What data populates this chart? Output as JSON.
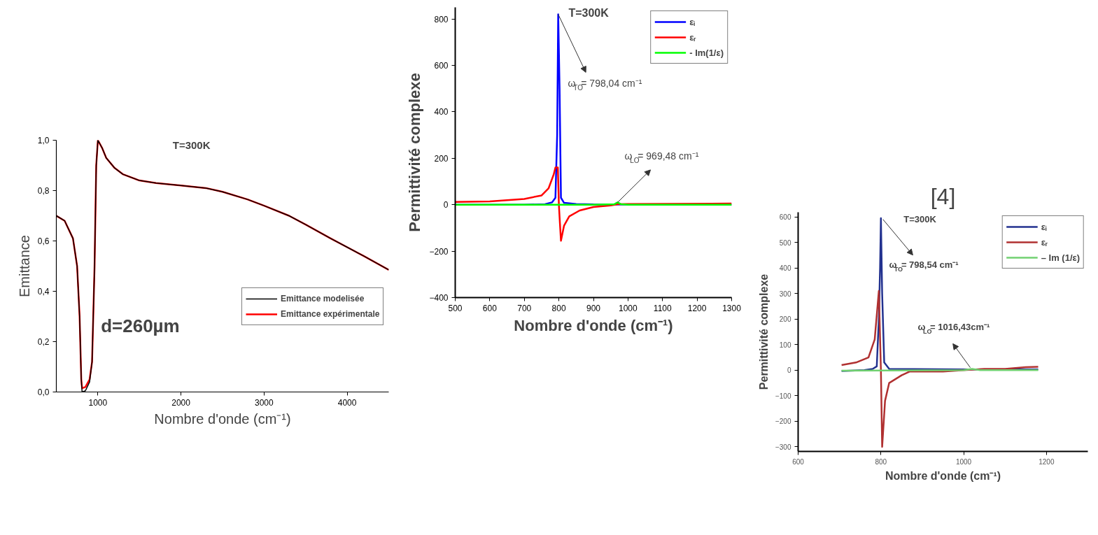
{
  "chart_data": [
    {
      "type": "line",
      "xlabel": "Nombre d'onde (cm⁻¹)",
      "ylabel": "Emittance",
      "grid": false,
      "legend": "right",
      "xlim": [
        500,
        4500
      ],
      "ylim": [
        0,
        1.0
      ],
      "xticks": [
        1000,
        2000,
        3000,
        4000
      ],
      "yticks": [
        {
          "value": 0,
          "label": "0,0"
        },
        {
          "value": 0.2,
          "label": "0,2"
        },
        {
          "value": 0.4,
          "label": "0,4"
        },
        {
          "value": 0.6,
          "label": "0,6"
        },
        {
          "value": 0.8,
          "label": "0,8"
        },
        {
          "value": 1.0,
          "label": "1,0"
        }
      ],
      "x": [
        500,
        600,
        700,
        750,
        780,
        800,
        810,
        850,
        900,
        930,
        960,
        980,
        1000,
        1050,
        1100,
        1200,
        1300,
        1500,
        1700,
        2000,
        2300,
        2500,
        2800,
        3000,
        3300,
        3500,
        3800,
        4000,
        4200,
        4500
      ],
      "series": [
        {
          "name": "Emittance modelisée",
          "color": "#000000",
          "values": [
            0.7,
            0.68,
            0.61,
            0.5,
            0.3,
            0.05,
            0.0,
            0.005,
            0.04,
            0.12,
            0.5,
            0.9,
            1.0,
            0.97,
            0.93,
            0.89,
            0.865,
            0.84,
            0.83,
            0.82,
            0.81,
            0.795,
            0.765,
            0.74,
            0.7,
            0.665,
            0.61,
            0.575,
            0.54,
            0.485
          ]
        },
        {
          "name": "Emittance expérimentale",
          "color": "#ff0000",
          "values": [
            0.7,
            0.68,
            0.61,
            0.5,
            0.3,
            0.05,
            0.015,
            0.02,
            0.05,
            0.12,
            0.5,
            0.9,
            1.0,
            0.97,
            0.93,
            0.89,
            0.865,
            0.84,
            0.83,
            0.82,
            0.81,
            0.795,
            0.765,
            0.74,
            0.7,
            0.665,
            0.61,
            0.575,
            0.54,
            0.485
          ]
        }
      ],
      "annotations": [
        "T=300K",
        "d=260µm"
      ]
    },
    {
      "type": "line",
      "xlabel": "Nombre d'onde (cm⁻¹)",
      "ylabel": "Permittivité complexe",
      "grid": false,
      "legend": "top right",
      "xlim": [
        500,
        1300
      ],
      "ylim": [
        -400,
        850
      ],
      "xticks": [
        500,
        600,
        700,
        800,
        900,
        1000,
        1100,
        1200,
        1300
      ],
      "yticks": [
        -400,
        -200,
        0,
        200,
        400,
        600,
        800
      ],
      "series": [
        {
          "name": "εᵢ",
          "color": "#0000ff",
          "x": [
            500,
            700,
            760,
            780,
            790,
            795,
            798,
            802,
            806,
            815,
            850,
            900,
            1300
          ],
          "values": [
            0,
            0,
            2,
            10,
            30,
            300,
            820,
            500,
            30,
            8,
            3,
            1,
            0
          ]
        },
        {
          "name": "εᵣ",
          "color": "#ff0000",
          "x": [
            500,
            600,
            700,
            750,
            770,
            785,
            790,
            797,
            800,
            803,
            806,
            815,
            830,
            860,
            900,
            950,
            970,
            1000,
            1300
          ],
          "values": [
            12,
            14,
            25,
            40,
            70,
            130,
            160,
            160,
            0,
            -80,
            -155,
            -90,
            -50,
            -25,
            -10,
            -3,
            2,
            3,
            5
          ]
        },
        {
          "name": "- Im(1/ε)",
          "color": "#00ff00",
          "x": [
            500,
            900,
            960,
            970,
            980,
            1000,
            1300
          ],
          "values": [
            0,
            0,
            2,
            10,
            2,
            0,
            0
          ]
        }
      ],
      "annotations": [
        "T=300K",
        {
          "text": "ω$_{TO}$= 798,04 cm⁻¹",
          "x": 798,
          "y": 820
        },
        {
          "text": "ω$_{LO}$= 969,48 cm⁻¹",
          "x": 970,
          "y": 10
        }
      ]
    },
    {
      "type": "line",
      "xlabel": "Nombre d'onde (cm⁻¹)",
      "ylabel": "Permittivité complexe",
      "grid": false,
      "legend": "top right",
      "xlim": [
        600,
        1300
      ],
      "ylim": [
        -318,
        618
      ],
      "xticks": [
        600,
        800,
        1000,
        1200
      ],
      "yticks": [
        -300,
        -200,
        -100,
        0,
        100,
        200,
        300,
        400,
        500,
        600
      ],
      "series": [
        {
          "name": "εᵢ",
          "color": "#22318f",
          "x": [
            705,
            760,
            780,
            790,
            795,
            798,
            800,
            803,
            808,
            820,
            1000,
            1180
          ],
          "values": [
            -3,
            0,
            5,
            15,
            200,
            400,
            595,
            300,
            30,
            5,
            3,
            3
          ]
        },
        {
          "name": "εᵣ",
          "color": "#b03030",
          "x": [
            705,
            740,
            770,
            785,
            795,
            800,
            803,
            810,
            820,
            850,
            870,
            950,
            1000,
            1050,
            1100,
            1150,
            1180
          ],
          "values": [
            20,
            30,
            50,
            120,
            310,
            0,
            -300,
            -120,
            -50,
            -20,
            -5,
            -5,
            0,
            5,
            5,
            12,
            13
          ]
        },
        {
          "name": "– Im (1/ε)",
          "color": "#70d070",
          "x": [
            705,
            1000,
            1020,
            1040,
            1180
          ],
          "values": [
            -2,
            0,
            5,
            0,
            0
          ]
        }
      ],
      "annotations": [
        "T=300K",
        {
          "text": "ω$_{TO}$= 798,54 cm⁻¹",
          "x": 805,
          "y": 590
        },
        {
          "text": "ω$_{LO}$= 1016,43cm⁻¹",
          "x": 1016,
          "y": 10
        },
        "[4]"
      ]
    }
  ]
}
